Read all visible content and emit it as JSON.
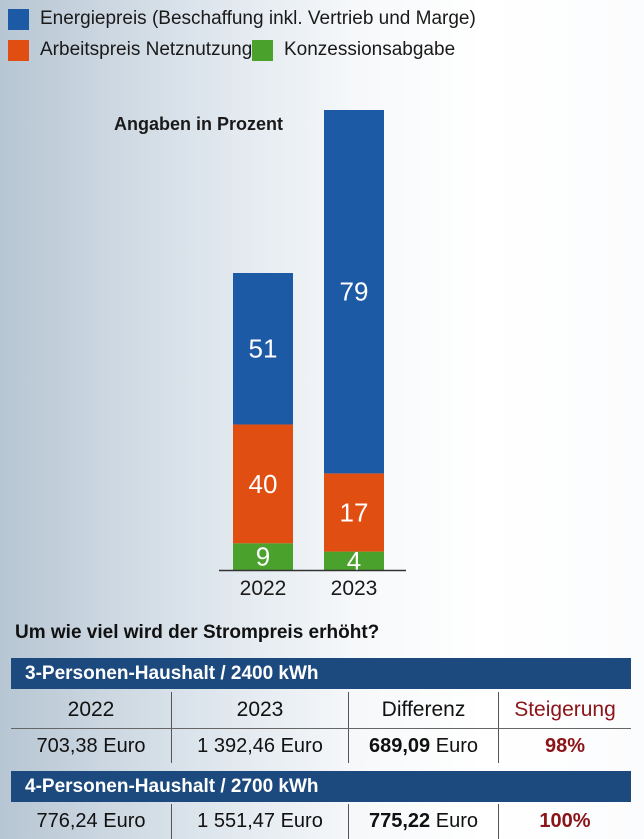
{
  "legend": [
    {
      "label": "Energiepreis (Beschaffung inkl. Vertrieb und Marge)",
      "color": "#1c5aa6"
    },
    {
      "label": "Arbeitspreis Netznutzung",
      "color": "#e04e12"
    },
    {
      "label": "Konzessionsabgabe",
      "color": "#4aa22c"
    }
  ],
  "unit_note": "Angaben in Prozent",
  "chart_data": {
    "type": "bar",
    "stacked": true,
    "categories": [
      "2022",
      "2023"
    ],
    "series": [
      {
        "name": "Konzessionsabgabe",
        "values": [
          9,
          4
        ],
        "color": "#4aa22c"
      },
      {
        "name": "Arbeitspreis Netznutzung",
        "values": [
          40,
          17
        ],
        "color": "#e04e12"
      },
      {
        "name": "Energiepreis (Beschaffung inkl. Vertrieb und Marge)",
        "values": [
          51,
          79
        ],
        "color": "#1c5aa6"
      }
    ],
    "ylim": [
      0,
      100
    ],
    "grid": false,
    "legend": "top-left",
    "title": "",
    "xlabel": "",
    "ylabel": ""
  },
  "question": "Um wie viel wird der Strompreis erhöht?",
  "table": {
    "columns": [
      "2022",
      "2023",
      "Differenz",
      "Steigerung"
    ],
    "households": [
      {
        "header": "3-Personen-Haushalt  / 2400 kWh",
        "v2022": "703,38",
        "v2023": "1 392,46",
        "diff": "689,09",
        "unit": "Euro",
        "increase": "98%"
      },
      {
        "header": "4-Personen-Haushalt  / 2700 kWh",
        "v2022": "776,24",
        "v2023": "1 551,47",
        "diff": "775,22",
        "unit": "Euro",
        "increase": "100%"
      }
    ]
  }
}
